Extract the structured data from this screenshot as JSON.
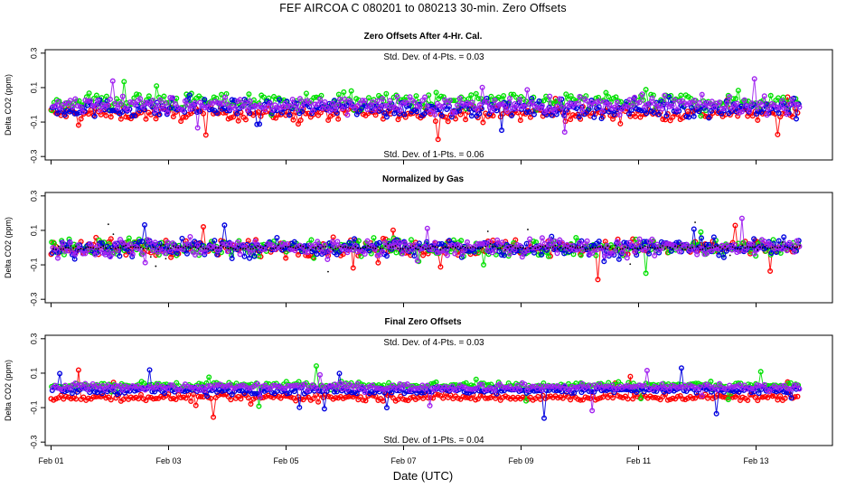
{
  "title": "FEF   AIRCOA C   080201 to 080213   30-min. Zero Offsets",
  "x_axis": {
    "label": "Date (UTC)",
    "ticks": [
      "Feb 01",
      "Feb 03",
      "Feb 05",
      "Feb 07",
      "Feb 09",
      "Feb 11",
      "Feb 13"
    ],
    "range_days": [
      -0.1,
      13.3
    ]
  },
  "colors": {
    "red": "#ff0000",
    "green": "#00e000",
    "blue": "#0000e0",
    "purple": "#a020f0",
    "black": "#000000"
  },
  "chart_data": [
    {
      "type": "scatter",
      "title": "Zero Offsets After 4-Hr. Cal.",
      "ylabel": "Delta CO2 (ppm)",
      "ylim": [
        -0.32,
        0.32
      ],
      "yticks": [
        "0.3",
        "0.1",
        "-0.1",
        "-0.3"
      ],
      "annotations": [
        "Std. Dev. of 4-Pts. =  0.03",
        "Std. Dev. of 1-Pts. =  0.06"
      ],
      "connected_lines": true,
      "series": [
        {
          "color": "red",
          "mean": -0.05,
          "spread": 0.04
        },
        {
          "color": "green",
          "mean": 0.02,
          "spread": 0.05
        },
        {
          "color": "blue",
          "mean": -0.02,
          "spread": 0.05
        },
        {
          "color": "purple",
          "mean": 0.0,
          "spread": 0.045
        }
      ]
    },
    {
      "type": "scatter",
      "title": "Normalized by Gas",
      "ylabel": "Delta CO2 (ppm)",
      "ylim": [
        -0.32,
        0.32
      ],
      "yticks": [
        "0.3",
        "0.1",
        "-0.1",
        "-0.3"
      ],
      "annotations": [],
      "connected_lines": true,
      "series": [
        {
          "color": "red",
          "mean": 0.0,
          "spread": 0.05
        },
        {
          "color": "green",
          "mean": 0.0,
          "spread": 0.05
        },
        {
          "color": "blue",
          "mean": 0.0,
          "spread": 0.05
        },
        {
          "color": "purple",
          "mean": 0.0,
          "spread": 0.05
        },
        {
          "color": "black",
          "mean": 0.0,
          "spread": 0.012,
          "marker": "dot"
        }
      ]
    },
    {
      "type": "scatter",
      "title": "Final Zero Offsets",
      "ylabel": "Delta CO2 (ppm)",
      "ylim": [
        -0.32,
        0.32
      ],
      "yticks": [
        "0.3",
        "0.1",
        "-0.1",
        "-0.3"
      ],
      "annotations": [
        "Std. Dev. of 4-Pts. =  0.03",
        "Std. Dev. of 1-Pts. =  0.04"
      ],
      "connected_lines": true,
      "series": [
        {
          "color": "red",
          "mean": -0.04,
          "spread": 0.02
        },
        {
          "color": "green",
          "mean": 0.03,
          "spread": 0.02
        },
        {
          "color": "blue",
          "mean": 0.0,
          "spread": 0.02
        },
        {
          "color": "purple",
          "mean": 0.02,
          "spread": 0.02
        }
      ]
    }
  ]
}
